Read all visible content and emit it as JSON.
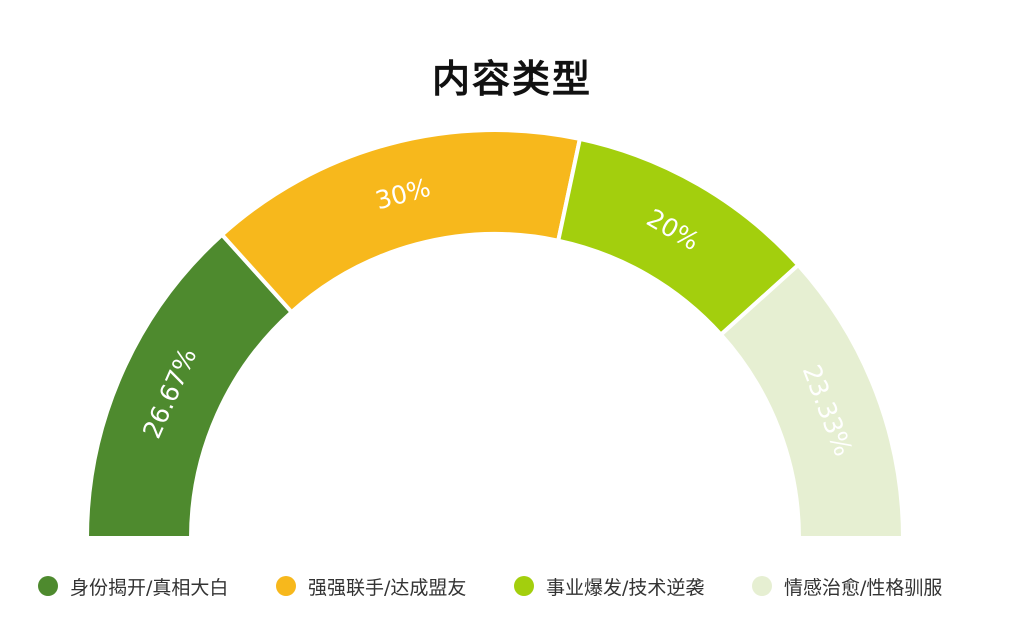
{
  "chart_data": {
    "type": "pie",
    "variant": "semi-donut",
    "title": "内容类型",
    "series": [
      {
        "name": "身份揭开/真相大白",
        "value": 26.67,
        "label": "26.67%",
        "color": "#4e8a2e"
      },
      {
        "name": "强强联手/达成盟友",
        "value": 30,
        "label": "30%",
        "color": "#f7b81c"
      },
      {
        "name": "事业爆发/技术逆袭",
        "value": 20,
        "label": "20%",
        "color": "#a3cf0d"
      },
      {
        "name": "情感治愈/性格驯服",
        "value": 23.33,
        "label": "23.33%",
        "color": "#e6efd2"
      }
    ],
    "legend_position": "bottom"
  }
}
